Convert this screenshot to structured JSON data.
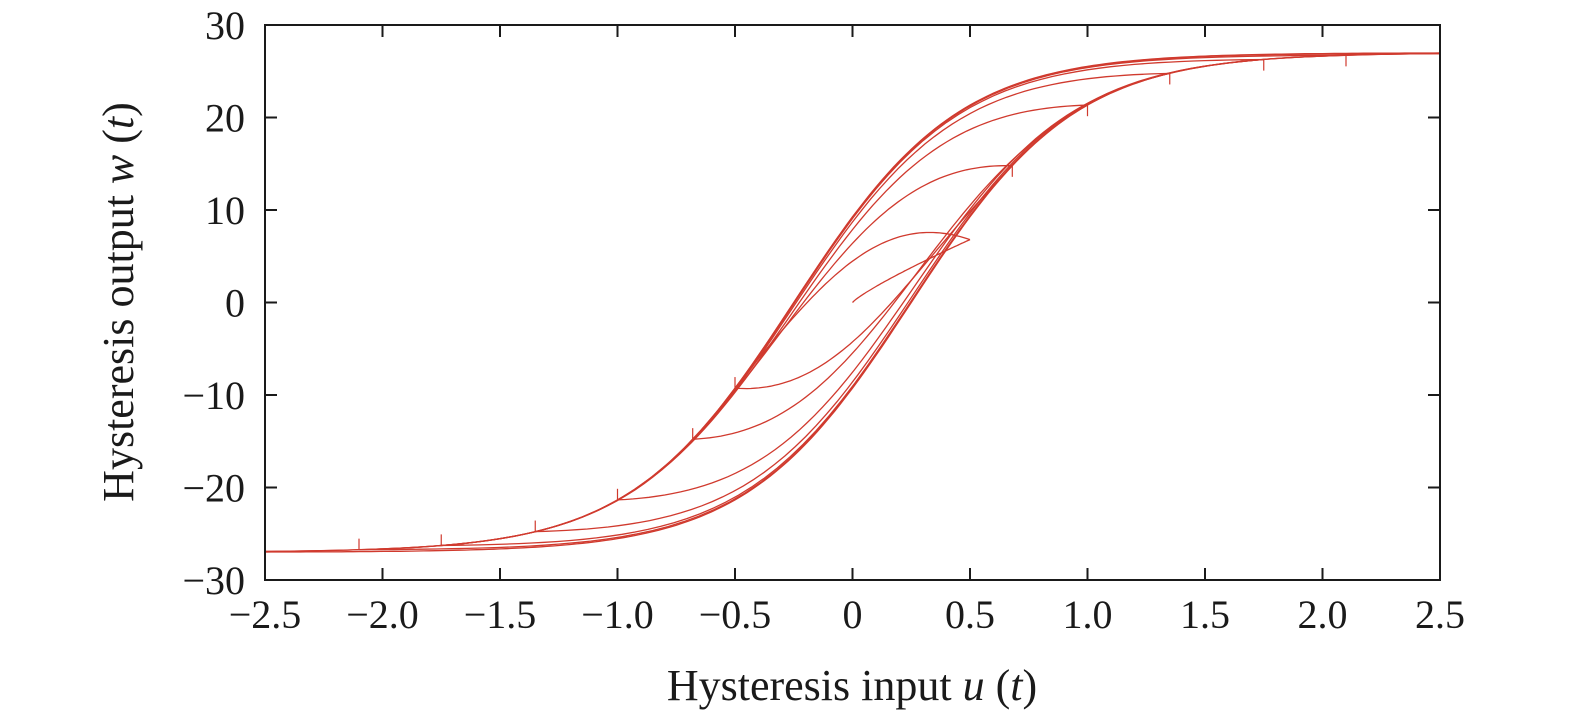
{
  "chart_data": {
    "type": "line",
    "title": "",
    "xlabel": "Hysteresis input u (t)",
    "ylabel": "Hysteresis output w (t)",
    "xlabel_parts": [
      "Hysteresis input ",
      "u",
      " (",
      "t",
      ")"
    ],
    "ylabel_parts": [
      "Hysteresis output ",
      "w",
      " (",
      "t",
      ")"
    ],
    "xlim": [
      -2.5,
      2.5
    ],
    "ylim": [
      -30,
      30
    ],
    "xticks": [
      -2.5,
      -2.0,
      -1.5,
      -1.0,
      -0.5,
      0,
      0.5,
      1.0,
      1.5,
      2.0,
      2.5
    ],
    "xtick_labels": [
      "−2.5",
      "−2.0",
      "−1.5",
      "−1.0",
      "−0.5",
      "0",
      "0.5",
      "1.0",
      "1.5",
      "2.0",
      "2.5"
    ],
    "yticks": [
      -30,
      -20,
      -10,
      0,
      10,
      20,
      30
    ],
    "ytick_labels": [
      "−30",
      "−20",
      "−10",
      "0",
      "10",
      "20",
      "30"
    ],
    "grid": false,
    "legend": "none",
    "line_color": "#d03a2e",
    "loop_model": {
      "saturation": 27,
      "half_width": 0.25,
      "steepness": 1.43,
      "turning_points": [
        0.0,
        0.5,
        -0.5,
        0.68,
        -0.68,
        1.0,
        -1.0,
        1.35,
        -1.35,
        1.75,
        -1.75,
        2.1,
        -2.1,
        2.5,
        -2.5
      ],
      "virgin_end_point": [
        0.5,
        6.8
      ]
    }
  }
}
